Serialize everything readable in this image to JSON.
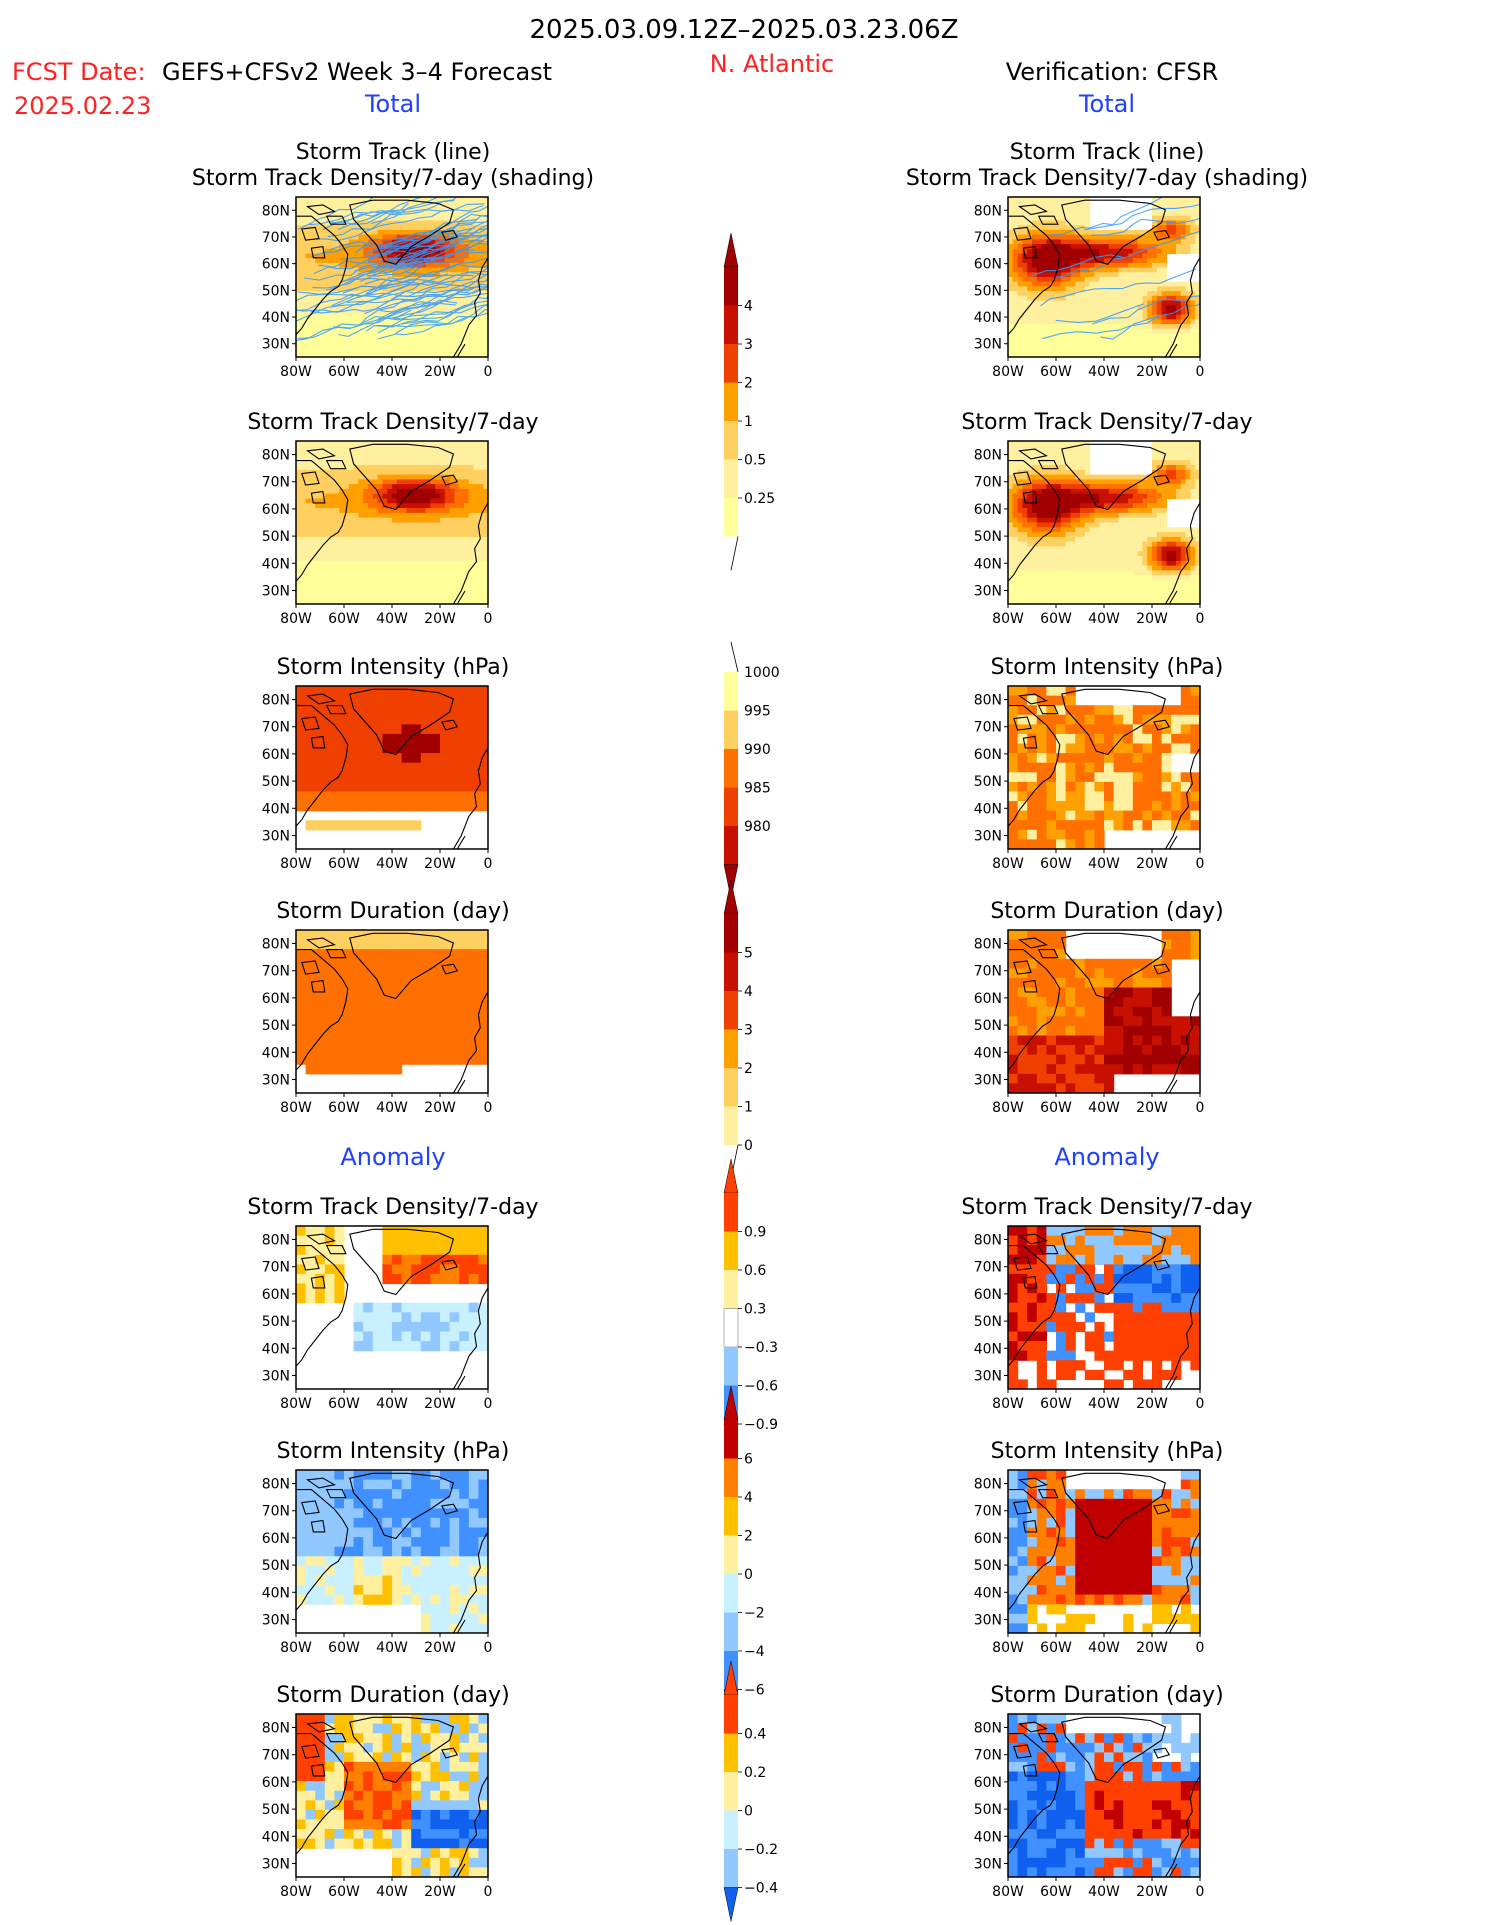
{
  "header": {
    "period": "2025.03.09.12Z–2025.03.23.06Z",
    "fcst_label": "FCST Date:",
    "fcst_model": "GEFS+CFSv2 Week 3–4 Forecast",
    "fcst_date": "2025.02.23",
    "region": "N. Atlantic",
    "verification": "Verification: CFSR"
  },
  "sections": {
    "total": "Total",
    "anomaly": "Anomaly"
  },
  "panel_titles": {
    "track_line": "Storm Track (line)",
    "track_density_shading": "Storm Track Density/7-day (shading)",
    "track_density": "Storm Track Density/7-day",
    "intensity": "Storm Intensity (hPa)",
    "duration": "Storm Duration (day)"
  },
  "map_axes": {
    "lat_labels": [
      "80N",
      "70N",
      "60N",
      "50N",
      "40N",
      "30N"
    ],
    "lon_labels": [
      "80W",
      "60W",
      "40W",
      "20W",
      "0"
    ]
  },
  "colorbars": {
    "density_total": {
      "labels": [
        "4",
        "3",
        "2",
        "1",
        "0.5",
        "0.25"
      ]
    },
    "intensity_total": {
      "labels": [
        "1000",
        "995",
        "990",
        "985",
        "980"
      ]
    },
    "duration_total": {
      "labels": [
        "5",
        "4",
        "3",
        "2",
        "1",
        "0"
      ]
    },
    "density_anom": {
      "labels": [
        "0.9",
        "0.6",
        "0.3",
        "−0.3",
        "−0.6",
        "−0.9"
      ]
    },
    "intensity_anom": {
      "labels": [
        "6",
        "4",
        "2",
        "0",
        "−2",
        "−4",
        "−6"
      ]
    },
    "duration_anom": {
      "labels": [
        "0.4",
        "0.2",
        "0",
        "−0.2",
        "−0.4"
      ]
    }
  },
  "colors": {
    "header_red": "#ff2020",
    "section_blue": "#2040ff",
    "track_blue": "#3399ff",
    "seq_warm": [
      "#ffffff",
      "#ffff99",
      "#fff0a0",
      "#ffd060",
      "#ffa000",
      "#ff7000",
      "#f04000",
      "#c81000",
      "#a00000"
    ],
    "div": [
      "#1060f0",
      "#4090ff",
      "#90c8ff",
      "#c8f0ff",
      "#ffffff",
      "#fff0a0",
      "#ffc000",
      "#ff8000",
      "#ff4000",
      "#c00000"
    ]
  }
}
